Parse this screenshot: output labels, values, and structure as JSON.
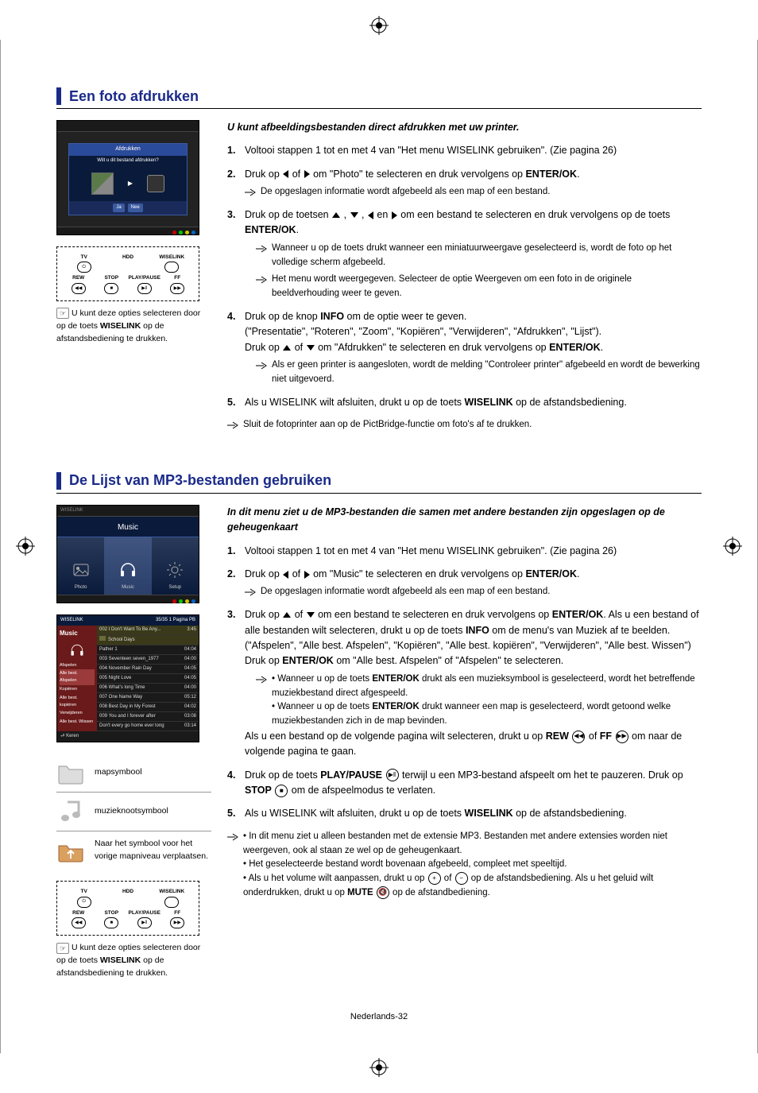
{
  "section1": {
    "title": "Een foto afdrukken",
    "intro": "U kunt afbeeldingsbestanden direct afdrukken met uw printer.",
    "steps": [
      {
        "n": "1.",
        "text": "Voltooi stappen 1 tot en met 4 van \"Het menu WISELINK gebruiken\". (Zie pagina 26)"
      },
      {
        "n": "2.",
        "pre": "Druk op ",
        "mid": " of ",
        "post": " om \"Photo\" te selecteren en druk vervolgens op ",
        "bold": "ENTER/OK",
        "end": ".",
        "sub": [
          {
            "text": "De opgeslagen informatie wordt afgebeeld als een map of een bestand."
          }
        ]
      },
      {
        "n": "3.",
        "line1a": "Druk op de toetsen ",
        "line1b": " , ",
        "line1c": " , ",
        "line1d": " en ",
        "line1e": " om een bestand te selecteren en druk vervolgens op de toets ",
        "line1bold": "ENTER/OK",
        "line1end": ".",
        "sub": [
          {
            "text": "Wanneer u op de toets drukt wanneer een miniatuurweergave geselecteerd is, wordt de foto op het volledige scherm afgebeeld."
          },
          {
            "text": "Het menu wordt weergegeven. Selecteer de optie Weergeven om een foto in de originele beeldverhouding weer te geven."
          }
        ]
      },
      {
        "n": "4.",
        "line_a": "Druk op de knop ",
        "bold_a": "INFO",
        "line_b": " om de optie weer te geven.",
        "line2": "(\"Presentatie\", \"Roteren\", \"Zoom\", \"Kopiëren\", \"Verwijderen\", \"Afdrukken\", \"Lijst\").",
        "line3a": "Druk op ",
        "line3b": " of ",
        "line3c": " om \"Afdrukken\" te selecteren en druk vervolgens op ",
        "line3bold": "ENTER/OK",
        "line3end": ".",
        "sub": [
          {
            "text": "Als er geen printer is aangesloten, wordt de melding \"Controleer printer\" afgebeeld en wordt de bewerking niet uitgevoerd."
          }
        ]
      },
      {
        "n": "5.",
        "pre": "Als u WISELINK wilt afsluiten, drukt u op de toets ",
        "bold": "WISELINK",
        "post": " op de afstandsbediening."
      }
    ],
    "tail_note": "Sluit de fotoprinter aan op de PictBridge-functie om foto's af te drukken.",
    "dialog": {
      "title": "Afdrukken",
      "q": "Wilt u dit bestand afdrukken?",
      "opt_yes": "Ja",
      "opt_no": "Nee"
    },
    "remote_note_a": "U kunt deze opties selecteren door op de toets ",
    "remote_note_bold": "WISELINK",
    "remote_note_b": " op de afstandsbediening te drukken."
  },
  "section2": {
    "title": "De Lijst van MP3-bestanden gebruiken",
    "intro": "In dit menu ziet u de MP3-bestanden die samen met andere bestanden zijn opgeslagen op de geheugenkaart",
    "menu": {
      "head": "Music",
      "tiles": [
        "Photo",
        "Music",
        "Setup"
      ]
    },
    "list": {
      "head_l": "WISELINK",
      "head_r": "35/35 1 Pagina PB",
      "side_title": "Music",
      "side_items": [
        "Afspelen",
        "Alle best. Afspelen",
        "Kopiëren",
        "Alle best. kopiëren",
        "Verwijderen",
        "Alle best. Wissen"
      ],
      "rows": [
        {
          "t": "002 I Don't Want To Be Any...",
          "r": "3:45",
          "hl": true
        },
        {
          "t": "School Days",
          "r": "",
          "fold": true
        },
        {
          "t": "Pather 1",
          "r": "04:04"
        },
        {
          "t": "003 Seventeen seven_1977",
          "r": "04:00"
        },
        {
          "t": "004 November Rain Day",
          "r": "04:05"
        },
        {
          "t": "005 Night Love",
          "r": "04:05"
        },
        {
          "t": "006 What's long Time",
          "r": "04:00"
        },
        {
          "t": "007 One Name Way",
          "r": "05:12"
        },
        {
          "t": "008 Best Day in My Forest",
          "r": "04:02"
        },
        {
          "t": "009 You and I forever after",
          "r": "03:08"
        },
        {
          "t": "Don't every go home ever long",
          "r": "03:14"
        }
      ],
      "foot": " ⮐ Keren"
    },
    "sym_folder": "mapsymbool",
    "sym_note": "muzieknootsymbool",
    "sym_up": "Naar het symbool voor het vorige mapniveau verplaatsen.",
    "remote_note_a": "U kunt deze opties selecteren door op de toets ",
    "remote_note_bold": "WISELINK",
    "remote_note_b": " op de afstandsbediening te drukken.",
    "steps": [
      {
        "n": "1.",
        "text": "Voltooi stappen 1 tot en met 4 van \"Het menu WISELINK gebruiken\". (Zie pagina 26)"
      },
      {
        "n": "2.",
        "pre": "Druk op ",
        "mid": " of ",
        "post": " om \"Music\" te selecteren en druk vervolgens op ",
        "bold": "ENTER/OK",
        "end": ".",
        "sub": [
          {
            "text": "De opgeslagen informatie wordt afgebeeld als een map of een bestand."
          }
        ]
      },
      {
        "n": "3.",
        "l1a": "Druk op ",
        "l1b": " of ",
        "l1c": " om een bestand te selecteren en druk vervolgens op ",
        "l1bold": "ENTER/OK",
        "l1d": ". Als u een bestand of alle bestanden wilt selecteren, drukt u op de toets ",
        "l1bold2": "INFO",
        "l1e": " om de menu's van Muziek af te beelden. (\"Afspelen\", \"Alle best. Afspelen\", \"Kopiëren\", \"Alle best. kopiëren\", \"Verwijderen\", \"Alle best. Wissen\")",
        "l2a": "Druk op ",
        "l2bold": "ENTER/OK",
        "l2b": " om \"Alle best. Afspelen\" of \"Afspelen\" te selecteren.",
        "sub": [
          {
            "bullets": [
              {
                "a": "• Wanneer u op de toets ",
                "bold": "ENTER/OK",
                "b": " drukt als een muzieksymbool is geselecteerd, wordt het betreffende muziekbestand direct afgespeeld."
              },
              {
                "a": "• Wanneer u op de toets ",
                "bold": "ENTER/OK",
                "b": " drukt wanneer een map is geselecteerd, wordt getoond welke muziekbestanden zich in de map bevinden."
              }
            ]
          }
        ],
        "tail_a": "Als u een bestand op de volgende pagina wilt selecteren, drukt u op ",
        "tail_b1": "REW",
        "tail_mid": " of ",
        "tail_b2": "FF",
        "tail_c": " om naar de volgende pagina te gaan."
      },
      {
        "n": "4.",
        "a": "Druk op de toets ",
        "bold1": "PLAY/PAUSE",
        "b": " terwijl u een MP3-bestand afspeelt om het te pauzeren. Druk op ",
        "bold2": "STOP",
        "c": " om de afspeelmodus te verlaten."
      },
      {
        "n": "5.",
        "pre": "Als u WISELINK wilt afsluiten, drukt u op de toets ",
        "bold": "WISELINK",
        "post": " op de afstandsbediening."
      }
    ],
    "tail_bullets": [
      "• In dit menu ziet u alleen bestanden met de extensie MP3. Bestanden met andere extensies worden niet weergeven, ook al staan ze wel op de geheugenkaart.",
      "• Het geselecteerde bestand wordt bovenaan afgebeeld, compleet met speeltijd."
    ],
    "tail_vol_a": "• Als u het volume wilt aanpassen, drukt u op ",
    "tail_vol_mid": " of ",
    "tail_vol_b": " op de afstandsbediening. Als u het geluid wilt onderdrukken, drukt u op ",
    "tail_vol_bold": "MUTE",
    "tail_vol_c": " op de afstandbediening."
  },
  "remote": {
    "top": [
      "TV",
      "HDD",
      "WISELINK"
    ],
    "bot": [
      "REW",
      "STOP",
      "PLAY/PAUSE",
      "FF"
    ]
  },
  "footer": "Nederlands-32"
}
